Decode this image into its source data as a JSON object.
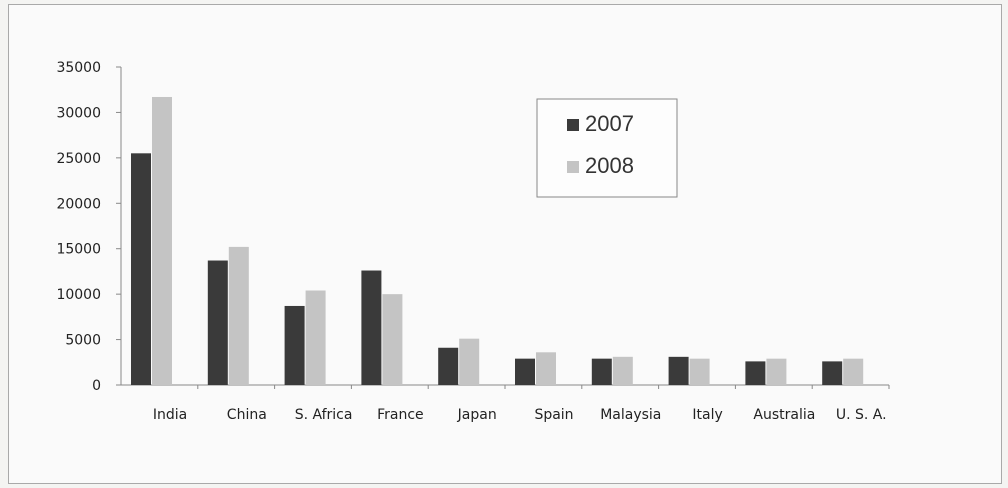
{
  "chart_data": {
    "type": "bar",
    "title": "",
    "xlabel": "",
    "ylabel": "",
    "ylim": [
      0,
      35000
    ],
    "yticks": [
      0,
      5000,
      10000,
      15000,
      20000,
      25000,
      30000,
      35000
    ],
    "grid": false,
    "legend_position": "top-center",
    "categories": [
      "India",
      "China",
      "S. Africa",
      "France",
      "Japan",
      "Spain",
      "Malaysia",
      "Italy",
      "Australia",
      "U. S. A."
    ],
    "series": [
      {
        "name": "2007",
        "color": "#3a3a3a",
        "values": [
          25500,
          13700,
          8700,
          12600,
          4100,
          2900,
          2900,
          3100,
          2600,
          2600
        ]
      },
      {
        "name": "2008",
        "color": "#c4c4c4",
        "values": [
          31700,
          15200,
          10400,
          10000,
          5100,
          3600,
          3100,
          2900,
          2900,
          2900
        ]
      }
    ]
  }
}
